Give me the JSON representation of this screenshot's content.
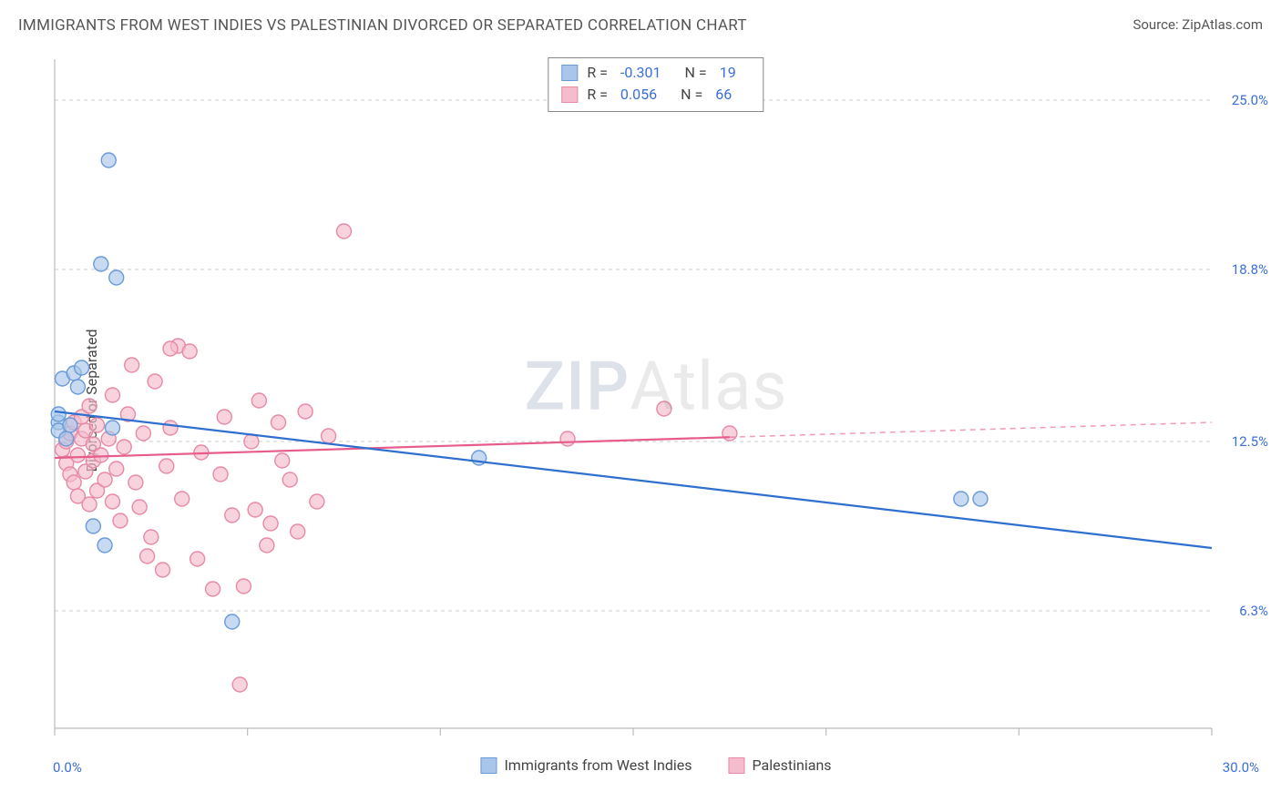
{
  "header": {
    "title": "IMMIGRANTS FROM WEST INDIES VS PALESTINIAN DIVORCED OR SEPARATED CORRELATION CHART",
    "source_label": "Source: ZipAtlas.com"
  },
  "axes": {
    "y_label": "Divorced or Separated",
    "x_min": 0.0,
    "x_max": 30.0,
    "x_start_label": "0.0%",
    "x_end_label": "30.0%",
    "x_ticks": [
      0,
      5,
      10,
      15,
      20,
      25,
      30
    ],
    "y_ticks": [
      {
        "v": 6.3,
        "label": "6.3%"
      },
      {
        "v": 12.5,
        "label": "12.5%"
      },
      {
        "v": 18.8,
        "label": "18.8%"
      },
      {
        "v": 25.0,
        "label": "25.0%"
      }
    ],
    "y_min": 2.0,
    "y_max": 26.5
  },
  "legend_bottom": {
    "series1": "Immigrants from West Indies",
    "series2": "Palestinians"
  },
  "stats": {
    "r_label": "R =",
    "n_label": "N =",
    "series1": {
      "r": "-0.301",
      "n": "19"
    },
    "series2": {
      "r": "0.056",
      "n": "66"
    }
  },
  "watermark": {
    "zip": "ZIP",
    "atlas": "Atlas"
  },
  "colors": {
    "blue_stroke": "#6a9bd8",
    "blue_fill": "#a9c6ea",
    "blue_line": "#2f6fd0",
    "pink_stroke": "#e68aa5",
    "pink_fill": "#f4bccd",
    "pink_line": "#e75c8b",
    "grid": "#cccccc",
    "axis": "#bbbbbb",
    "tick": "#bbbbbb"
  },
  "marker_radius": 8,
  "line_width": 2.2,
  "series_blue": {
    "points": [
      [
        0.1,
        13.2
      ],
      [
        0.1,
        12.9
      ],
      [
        0.1,
        13.5
      ],
      [
        0.2,
        14.8
      ],
      [
        0.3,
        12.6
      ],
      [
        0.4,
        13.1
      ],
      [
        0.5,
        15.0
      ],
      [
        0.6,
        14.5
      ],
      [
        1.2,
        19.0
      ],
      [
        1.6,
        18.5
      ],
      [
        1.4,
        22.8
      ],
      [
        1.0,
        9.4
      ],
      [
        1.3,
        8.7
      ],
      [
        1.5,
        13.0
      ],
      [
        4.6,
        5.9
      ],
      [
        11.0,
        11.9
      ],
      [
        23.5,
        10.4
      ],
      [
        24.0,
        10.4
      ],
      [
        0.7,
        15.2
      ]
    ],
    "trend": {
      "x1": 0,
      "y1": 13.6,
      "x2": 30,
      "y2": 8.6,
      "solid_until_x": 30
    }
  },
  "series_pink": {
    "points": [
      [
        0.2,
        12.2
      ],
      [
        0.3,
        11.7
      ],
      [
        0.3,
        12.5
      ],
      [
        0.4,
        11.3
      ],
      [
        0.4,
        12.8
      ],
      [
        0.5,
        13.2
      ],
      [
        0.5,
        11.0
      ],
      [
        0.6,
        12.0
      ],
      [
        0.6,
        10.5
      ],
      [
        0.7,
        12.6
      ],
      [
        0.7,
        13.4
      ],
      [
        0.8,
        11.4
      ],
      [
        0.8,
        12.9
      ],
      [
        0.9,
        10.2
      ],
      [
        0.9,
        13.8
      ],
      [
        1.0,
        11.8
      ],
      [
        1.0,
        12.4
      ],
      [
        1.1,
        10.7
      ],
      [
        1.1,
        13.1
      ],
      [
        1.2,
        12.0
      ],
      [
        1.3,
        11.1
      ],
      [
        1.4,
        12.6
      ],
      [
        1.5,
        10.3
      ],
      [
        1.5,
        14.2
      ],
      [
        1.6,
        11.5
      ],
      [
        1.7,
        9.6
      ],
      [
        1.8,
        12.3
      ],
      [
        1.9,
        13.5
      ],
      [
        2.0,
        15.3
      ],
      [
        2.1,
        11.0
      ],
      [
        2.2,
        10.1
      ],
      [
        2.3,
        12.8
      ],
      [
        2.5,
        9.0
      ],
      [
        2.6,
        14.7
      ],
      [
        2.8,
        7.8
      ],
      [
        2.9,
        11.6
      ],
      [
        3.0,
        13.0
      ],
      [
        3.2,
        16.0
      ],
      [
        3.3,
        10.4
      ],
      [
        3.5,
        15.8
      ],
      [
        3.7,
        8.2
      ],
      [
        3.8,
        12.1
      ],
      [
        4.1,
        7.1
      ],
      [
        4.3,
        11.3
      ],
      [
        4.4,
        13.4
      ],
      [
        4.6,
        9.8
      ],
      [
        4.9,
        7.2
      ],
      [
        5.1,
        12.5
      ],
      [
        5.3,
        14.0
      ],
      [
        5.5,
        8.7
      ],
      [
        5.8,
        13.2
      ],
      [
        6.1,
        11.1
      ],
      [
        6.3,
        9.2
      ],
      [
        6.5,
        13.6
      ],
      [
        6.8,
        10.3
      ],
      [
        7.1,
        12.7
      ],
      [
        7.5,
        20.2
      ],
      [
        4.8,
        3.6
      ],
      [
        5.2,
        10.0
      ],
      [
        5.6,
        9.5
      ],
      [
        5.9,
        11.8
      ],
      [
        13.3,
        12.6
      ],
      [
        15.8,
        13.7
      ],
      [
        17.5,
        12.8
      ],
      [
        3.0,
        15.9
      ],
      [
        2.4,
        8.3
      ]
    ],
    "trend": {
      "x1": 0,
      "y1": 11.9,
      "x2": 30,
      "y2": 13.2,
      "solid_until_x": 17.5
    }
  }
}
